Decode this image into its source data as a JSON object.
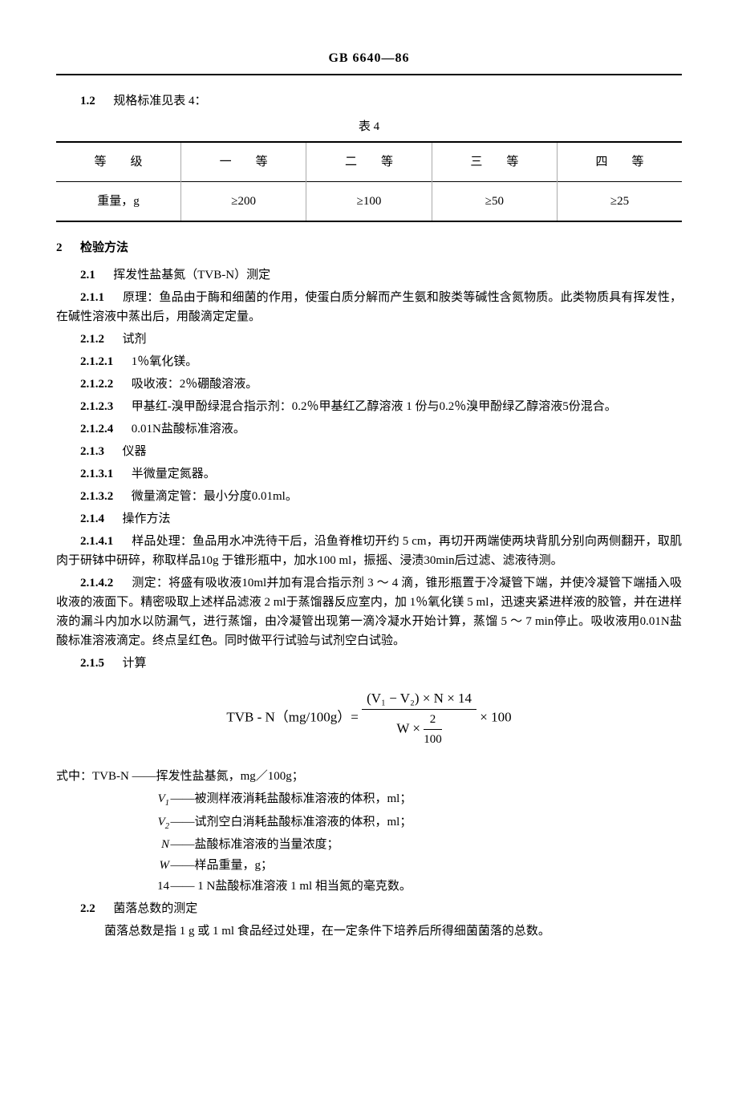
{
  "header": {
    "code": "GB 6640—86"
  },
  "s1_2": {
    "num": "1.2",
    "text": "规格标准见表 4：",
    "table_caption": "表 4",
    "table": {
      "headers": [
        "等　　级",
        "一　　等",
        "二　　等",
        "三　　等",
        "四　　等"
      ],
      "row_label": "重量，g",
      "cells": [
        "≥200",
        "≥100",
        "≥50",
        "≥25"
      ]
    }
  },
  "s2": {
    "num": "2",
    "title": "检验方法"
  },
  "s2_1": {
    "num": "2.1",
    "text": "挥发性盐基氮（TVB-N）测定"
  },
  "s2_1_1": {
    "num": "2.1.1",
    "text": "原理：鱼品由于酶和细菌的作用，使蛋白质分解而产生氨和胺类等碱性含氮物质。此类物质具有挥发性，在碱性溶液中蒸出后，用酸滴定定量。"
  },
  "s2_1_2": {
    "num": "2.1.2",
    "text": "试剂"
  },
  "s2_1_2_1": {
    "num": "2.1.2.1",
    "text": "1％氧化镁。"
  },
  "s2_1_2_2": {
    "num": "2.1.2.2",
    "text": "吸收液：2％硼酸溶液。"
  },
  "s2_1_2_3": {
    "num": "2.1.2.3",
    "text": "甲基红-溴甲酚绿混合指示剂：0.2％甲基红乙醇溶液 1 份与0.2％溴甲酚绿乙醇溶液5份混合。"
  },
  "s2_1_2_4": {
    "num": "2.1.2.4",
    "text": "0.01N盐酸标准溶液。"
  },
  "s2_1_3": {
    "num": "2.1.3",
    "text": "仪器"
  },
  "s2_1_3_1": {
    "num": "2.1.3.1",
    "text": "半微量定氮器。"
  },
  "s2_1_3_2": {
    "num": "2.1.3.2",
    "text": "微量滴定管：最小分度0.01ml。"
  },
  "s2_1_4": {
    "num": "2.1.4",
    "text": "操作方法"
  },
  "s2_1_4_1": {
    "num": "2.1.4.1",
    "text": "样品处理：鱼品用水冲洗待干后，沿鱼脊椎切开约 5 cm，再切开两端使两块背肌分别向两侧翻开，取肌肉于研钵中研碎，称取样品10g 于锥形瓶中，加水100 ml，振摇、浸渍30min后过滤、滤液待测。"
  },
  "s2_1_4_2": {
    "num": "2.1.4.2",
    "text": "测定：将盛有吸收液10ml并加有混合指示剂 3 ～ 4 滴，锥形瓶置于冷凝管下端，并使冷凝管下端插入吸收液的液面下。精密吸取上述样品滤液 2 ml于蒸馏器反应室内，加 1％氧化镁 5 ml，迅速夹紧进样液的胶管，并在进样液的漏斗内加水以防漏气，进行蒸馏，由冷凝管出现第一滴冷凝水开始计算，蒸馏 5 ～ 7 min停止。吸收液用0.01N盐酸标准溶液滴定。终点呈红色。同时做平行试验与试剂空白试验。"
  },
  "s2_1_5": {
    "num": "2.1.5",
    "text": "计算"
  },
  "formula": {
    "lhs_label": "TVB - N（mg/100g）=",
    "numerator": "(V₁ − V₂) × N × 14",
    "denom_left": "W ×",
    "denom_sfrac_top": "2",
    "denom_sfrac_bot": "100",
    "tail": "× 100"
  },
  "where": {
    "lead": "式中：TVB-N ——挥发性盐基氮，mg／100g；",
    "rows": [
      {
        "sym": "V₁",
        "text": "——被测样液消耗盐酸标准溶液的体积，ml；"
      },
      {
        "sym": "V₂",
        "text": "——试剂空白消耗盐酸标准溶液的体积，ml；"
      },
      {
        "sym": "N",
        "text": "——盐酸标准溶液的当量浓度；"
      },
      {
        "sym": "W",
        "text": "——样品重量，g；"
      },
      {
        "sym": "14",
        "text": "—— 1 N盐酸标准溶液 1 ml 相当氮的毫克数。",
        "roman": true
      }
    ]
  },
  "s2_2": {
    "num": "2.2",
    "text": "菌落总数的测定"
  },
  "s2_2_body": {
    "text": "菌落总数是指 1 g 或 1 ml 食品经过处理，在一定条件下培养后所得细菌菌落的总数。"
  }
}
